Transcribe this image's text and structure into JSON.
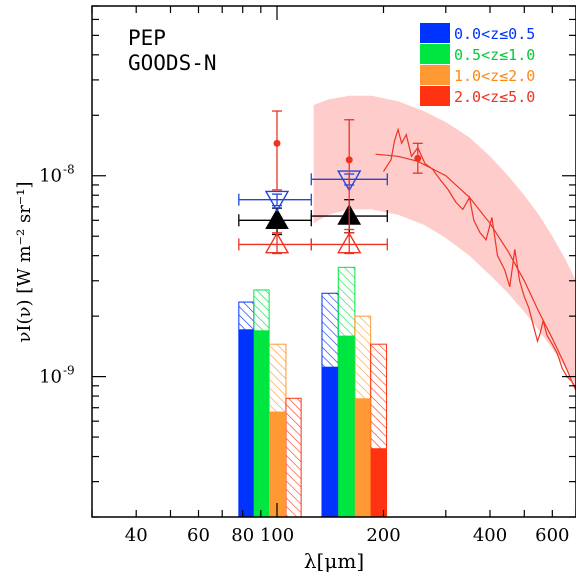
{
  "chart_data": {
    "type": "bar",
    "annotation_lines": [
      "PEP",
      "GOODS-N"
    ],
    "xlabel": "λ[μm]",
    "ylabel": "νI(ν) [W m⁻² sr⁻¹]",
    "x_log": true,
    "y_log": true,
    "xlim": [
      30,
      700
    ],
    "ylim": [
      2e-10,
      7e-08
    ],
    "x_ticks": [
      {
        "value": 40,
        "label": "40"
      },
      {
        "value": 60,
        "label": "60"
      },
      {
        "value": 80,
        "label": "80"
      },
      {
        "value": 100,
        "label": "100"
      },
      {
        "value": 200,
        "label": "200"
      },
      {
        "value": 400,
        "label": "400"
      },
      {
        "value": 600,
        "label": "600"
      }
    ],
    "y_ticks": [
      {
        "value": 1e-09,
        "label": "10",
        "exp": "-9"
      },
      {
        "value": 1e-08,
        "label": "10",
        "exp": "-8"
      }
    ],
    "legend_position": "top-right",
    "legend": [
      {
        "label": "0.0<z≤0.5",
        "color": "#0033ff"
      },
      {
        "label": "0.5<z≤1.0",
        "color": "#00e640"
      },
      {
        "label": "1.0<z≤2.0",
        "color": "#ff9933"
      },
      {
        "label": "2.0<z≤5.0",
        "color": "#ff3311"
      }
    ],
    "bars_solid": [
      {
        "band": 100,
        "bin": 0,
        "x0": 78,
        "x1": 86,
        "value": 1.72e-09,
        "color": "#0033ff"
      },
      {
        "band": 100,
        "bin": 1,
        "x0": 86,
        "x1": 95,
        "value": 1.7e-09,
        "color": "#00e640"
      },
      {
        "band": 100,
        "bin": 2,
        "x0": 95,
        "x1": 106,
        "value": 6.7e-10,
        "color": "#ff9933"
      },
      {
        "band": 100,
        "bin": 3,
        "x0": 106,
        "x1": 117,
        "value": 0,
        "color": "#ff3311"
      },
      {
        "band": 160,
        "bin": 0,
        "x0": 134,
        "x1": 149,
        "value": 1.12e-09,
        "color": "#0033ff"
      },
      {
        "band": 160,
        "bin": 1,
        "x0": 149,
        "x1": 166,
        "value": 1.6e-09,
        "color": "#00e640"
      },
      {
        "band": 160,
        "bin": 2,
        "x0": 166,
        "x1": 184,
        "value": 7.8e-10,
        "color": "#ff9933"
      },
      {
        "band": 160,
        "bin": 3,
        "x0": 184,
        "x1": 204,
        "value": 4.4e-10,
        "color": "#ff3311"
      }
    ],
    "bars_hatched": [
      {
        "band": 100,
        "bin": 0,
        "x0": 78,
        "x1": 86,
        "value": 2.35e-09,
        "color": "#0033ff"
      },
      {
        "band": 100,
        "bin": 1,
        "x0": 86,
        "x1": 95,
        "value": 2.7e-09,
        "color": "#00e640"
      },
      {
        "band": 100,
        "bin": 2,
        "x0": 95,
        "x1": 106,
        "value": 1.45e-09,
        "color": "#ff9933"
      },
      {
        "band": 100,
        "bin": 3,
        "x0": 106,
        "x1": 117,
        "value": 7.8e-10,
        "color": "#ff3311"
      },
      {
        "band": 160,
        "bin": 0,
        "x0": 134,
        "x1": 149,
        "value": 2.6e-09,
        "color": "#0033ff"
      },
      {
        "band": 160,
        "bin": 1,
        "x0": 149,
        "x1": 166,
        "value": 3.5e-09,
        "color": "#00e640"
      },
      {
        "band": 160,
        "bin": 2,
        "x0": 166,
        "x1": 184,
        "value": 2e-09,
        "color": "#ff9933"
      },
      {
        "band": 160,
        "bin": 3,
        "x0": 184,
        "x1": 204,
        "value": 1.45e-09,
        "color": "#ff3311"
      }
    ],
    "points": [
      {
        "kind": "filled-triangle",
        "x": 100,
        "y": 6e-09,
        "xerr": [
          78,
          125
        ],
        "yerr": [
          5.1e-09,
          6.9e-09
        ],
        "color": "#000000"
      },
      {
        "kind": "filled-triangle",
        "x": 160,
        "y": 6.3e-09,
        "xerr": [
          125,
          205
        ],
        "yerr": [
          5.2e-09,
          7.6e-09
        ],
        "color": "#000000"
      },
      {
        "kind": "open-triangle-down",
        "x": 100,
        "y": 7.6e-09,
        "xerr": [
          78,
          125
        ],
        "yerr": [
          7.1e-09,
          8.1e-09
        ],
        "color": "#2244dd"
      },
      {
        "kind": "open-triangle-down",
        "x": 160,
        "y": 9.6e-09,
        "xerr": [
          125,
          205
        ],
        "yerr": [
          9e-09,
          1.02e-08
        ],
        "color": "#2244dd"
      },
      {
        "kind": "open-triangle",
        "x": 100,
        "y": 4.55e-09,
        "xerr": [
          78,
          125
        ],
        "yerr": [
          4.1e-09,
          5.2e-09
        ],
        "color": "#ee3322"
      },
      {
        "kind": "open-triangle",
        "x": 160,
        "y": 4.55e-09,
        "xerr": [
          125,
          205
        ],
        "yerr": [
          4.1e-09,
          5.2e-09
        ],
        "color": "#ee3322"
      },
      {
        "kind": "dot",
        "x": 100,
        "y": 1.45e-08,
        "yerr": [
          8.5e-09,
          2.1e-08
        ],
        "color": "#ee3322"
      },
      {
        "kind": "dot",
        "x": 160,
        "y": 1.2e-08,
        "yerr": [
          5.4e-09,
          1.9e-08
        ],
        "color": "#ee3322"
      },
      {
        "kind": "dot",
        "x": 250,
        "y": 1.22e-08,
        "yerr": [
          1.03e-08,
          1.45e-08
        ],
        "color": "#ee3322"
      }
    ],
    "band_region": {
      "color": "#ffcccc",
      "upper": [
        [
          127,
          2.25e-08
        ],
        [
          140,
          2.4e-08
        ],
        [
          160,
          2.5e-08
        ],
        [
          185,
          2.5e-08
        ],
        [
          220,
          2.35e-08
        ],
        [
          260,
          2.1e-08
        ],
        [
          300,
          1.85e-08
        ],
        [
          350,
          1.55e-08
        ],
        [
          400,
          1.25e-08
        ],
        [
          450,
          1e-08
        ],
        [
          500,
          8e-09
        ],
        [
          550,
          6.4e-09
        ],
        [
          600,
          5e-09
        ],
        [
          650,
          3.9e-09
        ],
        [
          700,
          3e-09
        ]
      ],
      "lower": [
        [
          700,
          9e-10
        ],
        [
          650,
          1.12e-09
        ],
        [
          600,
          1.38e-09
        ],
        [
          550,
          1.7e-09
        ],
        [
          500,
          2.1e-09
        ],
        [
          450,
          2.6e-09
        ],
        [
          400,
          3.2e-09
        ],
        [
          350,
          4e-09
        ],
        [
          300,
          4.9e-09
        ],
        [
          260,
          5.7e-09
        ],
        [
          220,
          6.4e-09
        ],
        [
          185,
          6.8e-09
        ],
        [
          160,
          6.8e-09
        ],
        [
          140,
          6.4e-09
        ],
        [
          127,
          5.8e-09
        ]
      ]
    },
    "model_curve": {
      "color": "#ee3322",
      "points": [
        [
          190,
          1.28e-08
        ],
        [
          220,
          1.25e-08
        ],
        [
          250,
          1.18e-08
        ],
        [
          300,
          1e-08
        ],
        [
          350,
          7.8e-09
        ],
        [
          400,
          5.8e-09
        ],
        [
          450,
          4.2e-09
        ],
        [
          500,
          3e-09
        ],
        [
          550,
          2.1e-09
        ],
        [
          600,
          1.55e-09
        ],
        [
          650,
          1.15e-09
        ],
        [
          700,
          8.5e-10
        ]
      ]
    },
    "spectrum": {
      "color": "#ee3322",
      "points": [
        [
          200,
          1.05e-08
        ],
        [
          210,
          1.2e-08
        ],
        [
          215,
          1.5e-08
        ],
        [
          220,
          1.7e-08
        ],
        [
          225,
          1.45e-08
        ],
        [
          232,
          1.6e-08
        ],
        [
          240,
          1.25e-08
        ],
        [
          250,
          1.38e-08
        ],
        [
          262,
          1.15e-08
        ],
        [
          275,
          1.08e-08
        ],
        [
          290,
          9.5e-09
        ],
        [
          305,
          8.5e-09
        ],
        [
          320,
          7.4e-09
        ],
        [
          335,
          6.8e-09
        ],
        [
          350,
          7.8e-09
        ],
        [
          360,
          6e-09
        ],
        [
          375,
          5.2e-09
        ],
        [
          390,
          4.8e-09
        ],
        [
          405,
          6.2e-09
        ],
        [
          420,
          4e-09
        ],
        [
          440,
          3.4e-09
        ],
        [
          455,
          2.8e-09
        ],
        [
          470,
          4.3e-09
        ],
        [
          485,
          3e-09
        ],
        [
          500,
          2.5e-09
        ],
        [
          515,
          2.2e-09
        ],
        [
          530,
          1.8e-09
        ],
        [
          545,
          1.5e-09
        ],
        [
          555,
          1.65e-09
        ],
        [
          565,
          1.9e-09
        ],
        [
          580,
          1.6e-09
        ],
        [
          600,
          1.45e-09
        ],
        [
          620,
          1.3e-09
        ],
        [
          640,
          1.1e-09
        ],
        [
          660,
          1e-09
        ],
        [
          680,
          9.5e-10
        ],
        [
          700,
          8.8e-10
        ]
      ]
    }
  }
}
